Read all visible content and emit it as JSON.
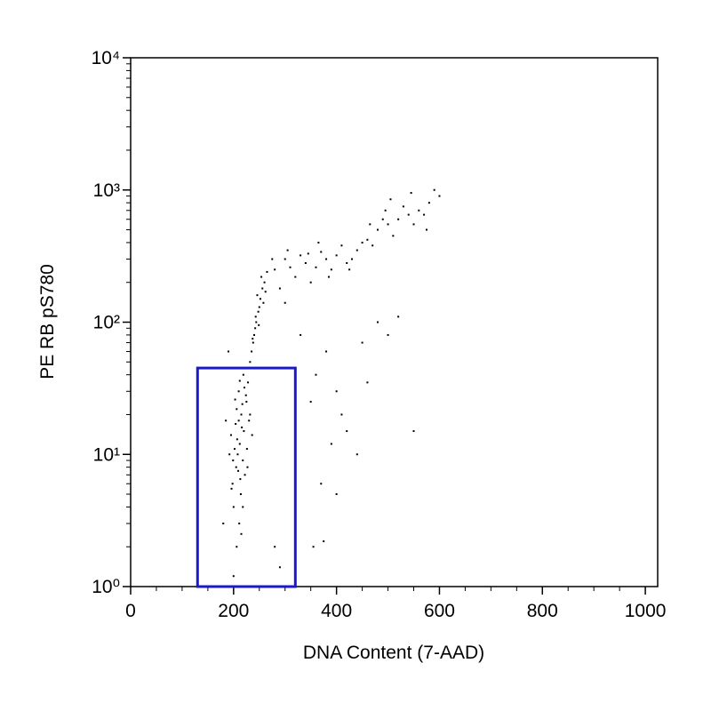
{
  "chart_data": {
    "type": "scatter",
    "x_label": "DNA Content (7-AAD)",
    "y_label": "PE RB pS780",
    "xlim": [
      0,
      1024
    ],
    "xticks": [
      0,
      200,
      400,
      600,
      800,
      1000
    ],
    "ylim": [
      1,
      10000
    ],
    "y_scale": "log",
    "yticks": [
      {
        "value": 1,
        "label": "10⁰"
      },
      {
        "value": 10,
        "label": "10¹"
      },
      {
        "value": 100,
        "label": "10²"
      },
      {
        "value": 1000,
        "label": "10³"
      },
      {
        "value": 10000,
        "label": "10⁴"
      }
    ],
    "series": [
      {
        "color": "#000000",
        "x": [
          205,
          212,
          198,
          220,
          215,
          208,
          225,
          200,
          218,
          210,
          230,
          195,
          222,
          206,
          214,
          228,
          202,
          216,
          211,
          224,
          199,
          207,
          219,
          213,
          226,
          204,
          217,
          209,
          221,
          196,
          232,
          203,
          215,
          227,
          210,
          236,
          192,
          218,
          212,
          206,
          232,
          238,
          242,
          248,
          252,
          256,
          235,
          244,
          250,
          240,
          260,
          246,
          236,
          254,
          262,
          243,
          249,
          258,
          237,
          265,
          280,
          300,
          320,
          340,
          360,
          380,
          400,
          420,
          440,
          290,
          310,
          330,
          350,
          370,
          390,
          410,
          430,
          450,
          275,
          305,
          345,
          385,
          425,
          365,
          460,
          480,
          500,
          520,
          540,
          560,
          580,
          600,
          470,
          490,
          510,
          530,
          550,
          570,
          590,
          505,
          545,
          575,
          465,
          495,
          300,
          330,
          360,
          380,
          400,
          420,
          440,
          460,
          480,
          550,
          350,
          370,
          390,
          410,
          355,
          375,
          320,
          290,
          280,
          200,
          180,
          185,
          190,
          450,
          500,
          520,
          400
        ],
        "values": [
          8,
          12,
          6,
          15,
          20,
          10,
          25,
          4,
          9,
          30,
          18,
          14,
          7,
          22,
          5,
          35,
          11,
          16,
          3,
          28,
          9,
          13,
          40,
          6.5,
          11,
          17,
          24,
          7.5,
          32,
          5.5,
          20,
          26,
          2.5,
          8,
          18,
          14,
          10,
          4,
          36,
          2,
          50,
          70,
          90,
          120,
          150,
          180,
          60,
          100,
          130,
          80,
          200,
          160,
          45,
          220,
          170,
          110,
          95,
          140,
          75,
          240,
          250,
          300,
          220,
          280,
          260,
          300,
          320,
          280,
          350,
          180,
          260,
          320,
          200,
          340,
          250,
          380,
          300,
          400,
          300,
          350,
          330,
          220,
          250,
          400,
          420,
          500,
          550,
          600,
          650,
          700,
          800,
          900,
          380,
          600,
          450,
          750,
          550,
          650,
          1000,
          850,
          950,
          500,
          550,
          700,
          140,
          80,
          40,
          60,
          30,
          15,
          10,
          35,
          100,
          15,
          25,
          6,
          12,
          20,
          2,
          2.2,
          3.5,
          1.4,
          2,
          1.2,
          3,
          18,
          60,
          70,
          80,
          110,
          5
        ]
      }
    ],
    "gate": {
      "x": [
        130,
        320
      ],
      "y": [
        1,
        45
      ],
      "color": "#1a1acd"
    }
  }
}
